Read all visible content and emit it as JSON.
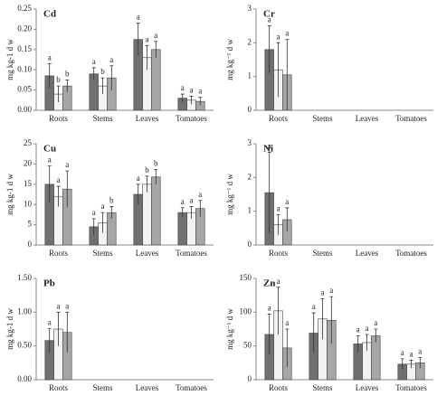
{
  "chart_data": [
    {
      "type": "bar",
      "title": "Cd",
      "y_label": "mg kg-1 d w",
      "categories": [
        "Roots",
        "Stems",
        "Leaves",
        "Tomatoes"
      ],
      "ylim": [
        0,
        0.25
      ],
      "yticks": [
        {
          "value": 0,
          "label": "0.00"
        },
        {
          "value": 0.05,
          "label": "0.05"
        },
        {
          "value": 0.1,
          "label": "0.10"
        },
        {
          "value": 0.15,
          "label": "0.15"
        },
        {
          "value": 0.2,
          "label": "0.20"
        },
        {
          "value": 0.25,
          "label": "0.25"
        }
      ],
      "series": [
        {
          "color": "#707070",
          "values": [
            0.085,
            0.09,
            0.175,
            0.03
          ],
          "errors": [
            0.03,
            0.015,
            0.04,
            0.01
          ],
          "letters": [
            "a",
            "a",
            "a",
            "a"
          ]
        },
        {
          "color": "#f2f2f2",
          "values": [
            0.04,
            0.06,
            0.13,
            0.025
          ],
          "errors": [
            0.02,
            0.02,
            0.03,
            0.01
          ],
          "letters": [
            "b",
            "b",
            "a",
            "a"
          ]
        },
        {
          "color": "#a6a6a6",
          "values": [
            0.06,
            0.08,
            0.15,
            0.022
          ],
          "errors": [
            0.015,
            0.03,
            0.02,
            0.01
          ],
          "letters": [
            "b",
            "a",
            "a",
            "a"
          ]
        }
      ]
    },
    {
      "type": "bar",
      "title": "Cr",
      "y_label": "mg kg⁻¹ d w",
      "categories": [
        "Roots",
        "Stems",
        "Leaves",
        "Tomatoes"
      ],
      "ylim": [
        0,
        3
      ],
      "yticks": [
        0,
        1,
        2,
        3
      ],
      "series": [
        {
          "color": "#707070",
          "values": [
            1.8,
            null,
            null,
            null
          ],
          "errors": [
            0.7,
            null,
            null,
            null
          ],
          "letters": [
            "a",
            null,
            null,
            null
          ]
        },
        {
          "color": "#f2f2f2",
          "values": [
            1.2,
            null,
            null,
            null
          ],
          "errors": [
            0.8,
            null,
            null,
            null
          ],
          "letters": [
            "a",
            null,
            null,
            null
          ]
        },
        {
          "color": "#a6a6a6",
          "values": [
            1.05,
            null,
            null,
            null
          ],
          "errors": [
            1.05,
            null,
            null,
            null
          ],
          "letters": [
            "a",
            null,
            null,
            null
          ]
        }
      ]
    },
    {
      "type": "bar",
      "title": "Cu",
      "y_label": "mg kg-1 d w",
      "categories": [
        "Roots",
        "Stems",
        "Leaves",
        "Tomatoes"
      ],
      "ylim": [
        0,
        25
      ],
      "yticks": [
        0,
        5,
        10,
        15,
        20,
        25
      ],
      "series": [
        {
          "color": "#707070",
          "values": [
            15,
            4.5,
            12.5,
            8
          ],
          "errors": [
            4.5,
            2,
            2.5,
            1.2
          ],
          "letters": [
            "a",
            "a",
            "a",
            "a"
          ]
        },
        {
          "color": "#f2f2f2",
          "values": [
            12,
            5.5,
            15,
            8
          ],
          "errors": [
            2.5,
            2.5,
            2,
            1.5
          ],
          "letters": [
            "a",
            "a",
            "b",
            "a"
          ]
        },
        {
          "color": "#a6a6a6",
          "values": [
            13.8,
            8,
            16.8,
            9
          ],
          "errors": [
            4.5,
            1.5,
            1.8,
            2
          ],
          "letters": [
            "a",
            "b",
            "b",
            "a"
          ]
        }
      ]
    },
    {
      "type": "bar",
      "title": "Ni",
      "y_label": "mg kg⁻¹ d w",
      "categories": [
        "Roots",
        "Stems",
        "Leaves",
        "Tomatoes"
      ],
      "ylim": [
        0,
        3
      ],
      "yticks": [
        0,
        1,
        2,
        3
      ],
      "series": [
        {
          "color": "#707070",
          "values": [
            1.55,
            null,
            null,
            null
          ],
          "errors": [
            1.2,
            null,
            null,
            null
          ],
          "letters": [
            "a",
            null,
            null,
            null
          ]
        },
        {
          "color": "#f2f2f2",
          "values": [
            0.6,
            null,
            null,
            null
          ],
          "errors": [
            0.3,
            null,
            null,
            null
          ],
          "letters": [
            "a",
            null,
            null,
            null
          ]
        },
        {
          "color": "#a6a6a6",
          "values": [
            0.75,
            null,
            null,
            null
          ],
          "errors": [
            0.35,
            null,
            null,
            null
          ],
          "letters": [
            "a",
            null,
            null,
            null
          ]
        }
      ]
    },
    {
      "type": "bar",
      "title": "Pb",
      "y_label": "mg kg-1 d w",
      "categories": [
        "Roots",
        "Stems",
        "Leaves",
        "Tomatoes"
      ],
      "ylim": [
        0,
        1.5
      ],
      "yticks": [
        {
          "value": 0,
          "label": "0.00"
        },
        {
          "value": 0.5,
          "label": "0.50"
        },
        {
          "value": 1,
          "label": "1.00"
        },
        {
          "value": 1.5,
          "label": "1.50"
        }
      ],
      "series": [
        {
          "color": "#707070",
          "values": [
            0.58,
            null,
            null,
            null
          ],
          "errors": [
            0.18,
            null,
            null,
            null
          ],
          "letters": [
            "a",
            null,
            null,
            null
          ]
        },
        {
          "color": "#f2f2f2",
          "values": [
            0.75,
            null,
            null,
            null
          ],
          "errors": [
            0.25,
            null,
            null,
            null
          ],
          "letters": [
            "a",
            null,
            null,
            null
          ]
        },
        {
          "color": "#a6a6a6",
          "values": [
            0.7,
            null,
            null,
            null
          ],
          "errors": [
            0.3,
            null,
            null,
            null
          ],
          "letters": [
            "a",
            null,
            null,
            null
          ]
        }
      ]
    },
    {
      "type": "bar",
      "title": "Zn",
      "y_label": "mg kg⁻¹ d w",
      "categories": [
        "Roots",
        "Stems",
        "Leaves",
        "Tomatoes"
      ],
      "ylim": [
        0,
        150
      ],
      "yticks": [
        0,
        50,
        100,
        150
      ],
      "series": [
        {
          "color": "#707070",
          "values": [
            67,
            69,
            53,
            23
          ],
          "errors": [
            30,
            30,
            12,
            8
          ],
          "letters": [
            "a",
            "a",
            "a",
            "a"
          ]
        },
        {
          "color": "#f2f2f2",
          "values": [
            102,
            90,
            55,
            23
          ],
          "errors": [
            35,
            30,
            12,
            6
          ],
          "letters": [
            "a",
            "a",
            "a",
            "a"
          ]
        },
        {
          "color": "#a6a6a6",
          "values": [
            47,
            88,
            65,
            25
          ],
          "errors": [
            28,
            35,
            10,
            8
          ],
          "letters": [
            "a",
            "a",
            "a",
            "a"
          ]
        }
      ]
    }
  ]
}
